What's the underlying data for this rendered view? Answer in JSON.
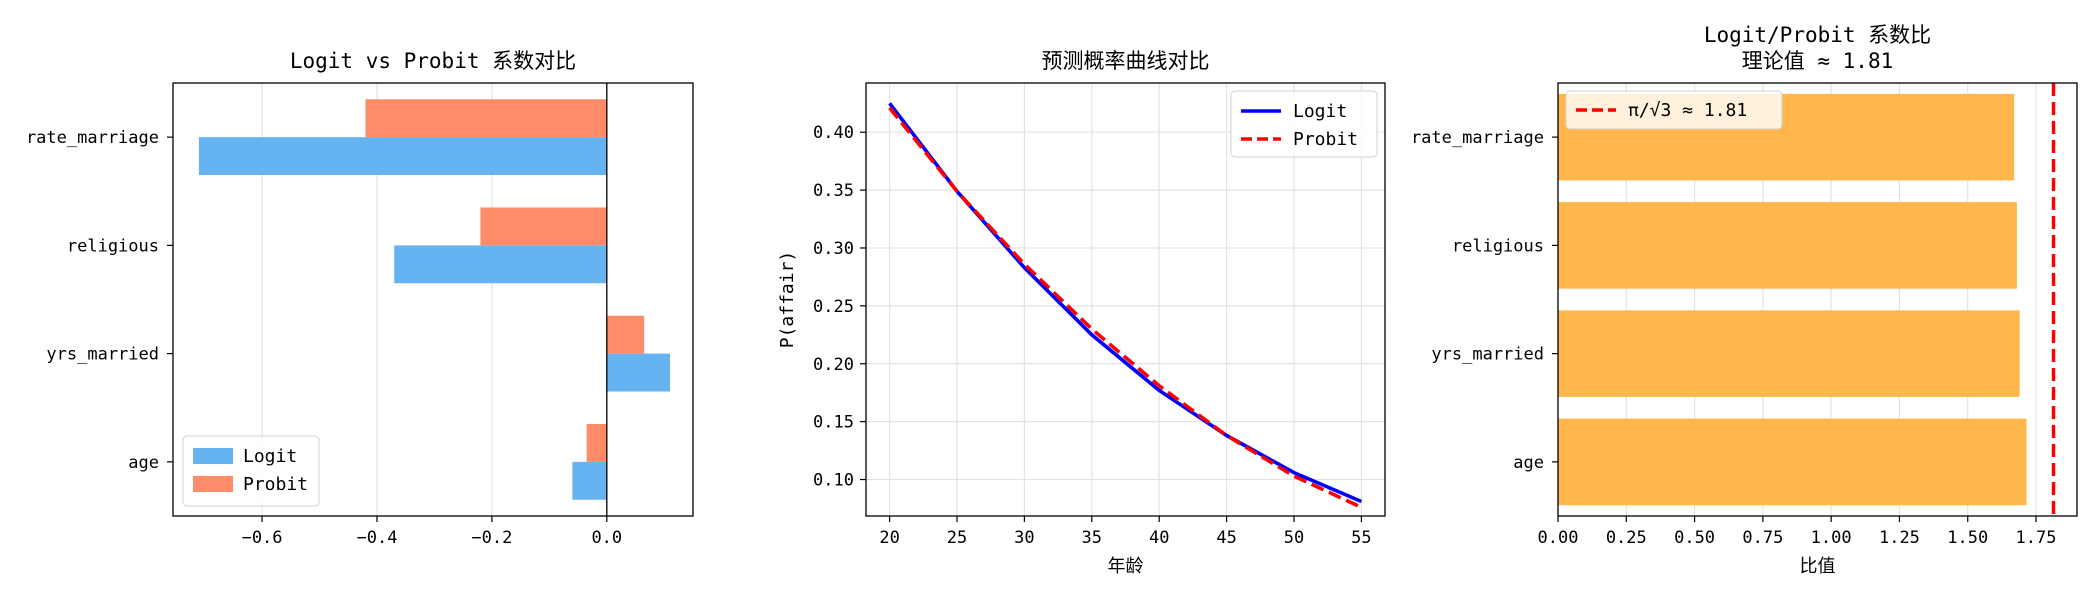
{
  "chart_data": [
    {
      "type": "bar",
      "orientation": "horizontal",
      "title": "Logit vs Probit 系数对比",
      "xlabel": "",
      "ylabel": "",
      "categories": [
        "age",
        "yrs_married",
        "religious",
        "rate_marriage"
      ],
      "series": [
        {
          "name": "Logit",
          "values": [
            -0.06,
            0.11,
            -0.37,
            -0.71
          ],
          "color": "#66b3f2"
        },
        {
          "name": "Probit",
          "values": [
            -0.035,
            0.065,
            -0.22,
            -0.42
          ],
          "color": "#ff8c69"
        }
      ],
      "xlim": [
        -0.755,
        0.15
      ],
      "xticks": [
        -0.6,
        -0.4,
        -0.2,
        0.0
      ],
      "xtick_labels": [
        "−0.6",
        "−0.4",
        "−0.2",
        "0.0"
      ],
      "zero_line": true,
      "grid": "x",
      "legend": "lower-left"
    },
    {
      "type": "line",
      "title": "预测概率曲线对比",
      "xlabel": "年龄",
      "ylabel": "P(affair)",
      "x": [
        20,
        25,
        30,
        35,
        40,
        45,
        50,
        55
      ],
      "series": [
        {
          "name": "Logit",
          "values": [
            0.425,
            0.349,
            0.283,
            0.225,
            0.177,
            0.138,
            0.106,
            0.081
          ],
          "color": "#0000ff",
          "style": "solid"
        },
        {
          "name": "Probit",
          "values": [
            0.421,
            0.349,
            0.286,
            0.23,
            0.181,
            0.138,
            0.103,
            0.076
          ],
          "color": "#ff0000",
          "style": "dashed"
        }
      ],
      "xlim": [
        18.25,
        56.75
      ],
      "ylim": [
        0.0685,
        0.4425
      ],
      "xticks": [
        20,
        25,
        30,
        35,
        40,
        45,
        50,
        55
      ],
      "xtick_labels": [
        "20",
        "25",
        "30",
        "35",
        "40",
        "45",
        "50",
        "55"
      ],
      "yticks": [
        0.1,
        0.15,
        0.2,
        0.25,
        0.3,
        0.35,
        0.4
      ],
      "ytick_labels": [
        "0.10",
        "0.15",
        "0.20",
        "0.25",
        "0.30",
        "0.35",
        "0.40"
      ],
      "grid": "both",
      "legend": "top-right"
    },
    {
      "type": "bar",
      "orientation": "horizontal",
      "title": "Logit/Probit 系数比",
      "subtitle": "理论值 ≈ 1.81",
      "xlabel": "比值",
      "ylabel": "",
      "categories": [
        "age",
        "yrs_married",
        "religious",
        "rate_marriage"
      ],
      "values": [
        1.715,
        1.69,
        1.68,
        1.67
      ],
      "color": "#ffb74d",
      "reference_line": {
        "value": 1.814,
        "label": "π/√3 ≈ 1.81",
        "color": "#ff0000",
        "style": "dashed"
      },
      "xlim": [
        0,
        1.9
      ],
      "xticks": [
        0,
        0.25,
        0.5,
        0.75,
        1.0,
        1.25,
        1.5,
        1.75
      ],
      "xtick_labels": [
        "0.00",
        "0.25",
        "0.50",
        "0.75",
        "1.00",
        "1.25",
        "1.50",
        "1.75"
      ],
      "grid": "x",
      "legend": "top-left"
    }
  ]
}
